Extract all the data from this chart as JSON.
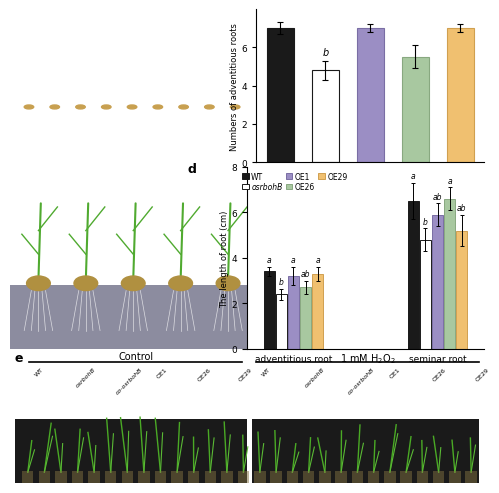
{
  "panel_c": {
    "categories": [
      "WT",
      "osrbohB",
      "OE1",
      "OE26",
      "OE29"
    ],
    "values": [
      7.0,
      4.8,
      7.0,
      5.5,
      7.0
    ],
    "errors": [
      0.3,
      0.5,
      0.2,
      0.6,
      0.2
    ],
    "colors": [
      "#1a1a1a",
      "#ffffff",
      "#9b8ec4",
      "#a8c8a0",
      "#f0c070"
    ],
    "edge_colors": [
      "#1a1a1a",
      "#1a1a1a",
      "#7a6ea4",
      "#88a880",
      "#d0a050"
    ],
    "significance": [
      "",
      "b",
      "",
      "",
      ""
    ],
    "ylabel": "Numbers of adventitious roots",
    "ylim": [
      0,
      8
    ],
    "yticks": [
      0,
      2,
      4,
      6
    ]
  },
  "panel_d": {
    "groups": [
      "adventitious root",
      "seminar root"
    ],
    "categories": [
      "WT",
      "osrbohB",
      "OE1",
      "OE26",
      "OE29"
    ],
    "values_adv": [
      3.4,
      2.4,
      3.2,
      2.7,
      3.3
    ],
    "errors_adv": [
      0.2,
      0.25,
      0.4,
      0.3,
      0.3
    ],
    "sig_adv": [
      "a",
      "b",
      "a",
      "ab",
      "a"
    ],
    "values_sem": [
      6.5,
      4.8,
      5.9,
      6.6,
      5.2
    ],
    "errors_sem": [
      0.8,
      0.5,
      0.5,
      0.5,
      0.7
    ],
    "sig_sem": [
      "a",
      "b",
      "ab",
      "a",
      "ab"
    ],
    "colors": [
      "#1a1a1a",
      "#ffffff",
      "#9b8ec4",
      "#a8c8a0",
      "#f0c070"
    ],
    "edge_colors": [
      "#1a1a1a",
      "#1a1a1a",
      "#7a6ea4",
      "#88a880",
      "#d0a050"
    ],
    "ylabel": "The length of root (cm)",
    "ylim": [
      0,
      8
    ],
    "yticks": [
      0,
      2,
      4,
      6,
      8
    ],
    "legend_labels": [
      "WT",
      "osrbohB",
      "OE1",
      "OE26",
      "OE29"
    ]
  },
  "panel_e": {
    "control_label": "Control",
    "treatment_label": "1 mM H₂O₂",
    "control_plants": [
      "WT",
      "osrbohB",
      "co-osrbohB",
      "OE1",
      "OE26",
      "OE29"
    ],
    "treatment_plants": [
      "WT",
      "osrbohB",
      "co-osrbohB",
      "OE1",
      "OE26",
      "OE29"
    ],
    "bg_color": "#ffffff",
    "photo_bg": "#1a1a1a"
  },
  "panel_ab_bg": "#1a1a1a",
  "bg_color": "#ffffff"
}
